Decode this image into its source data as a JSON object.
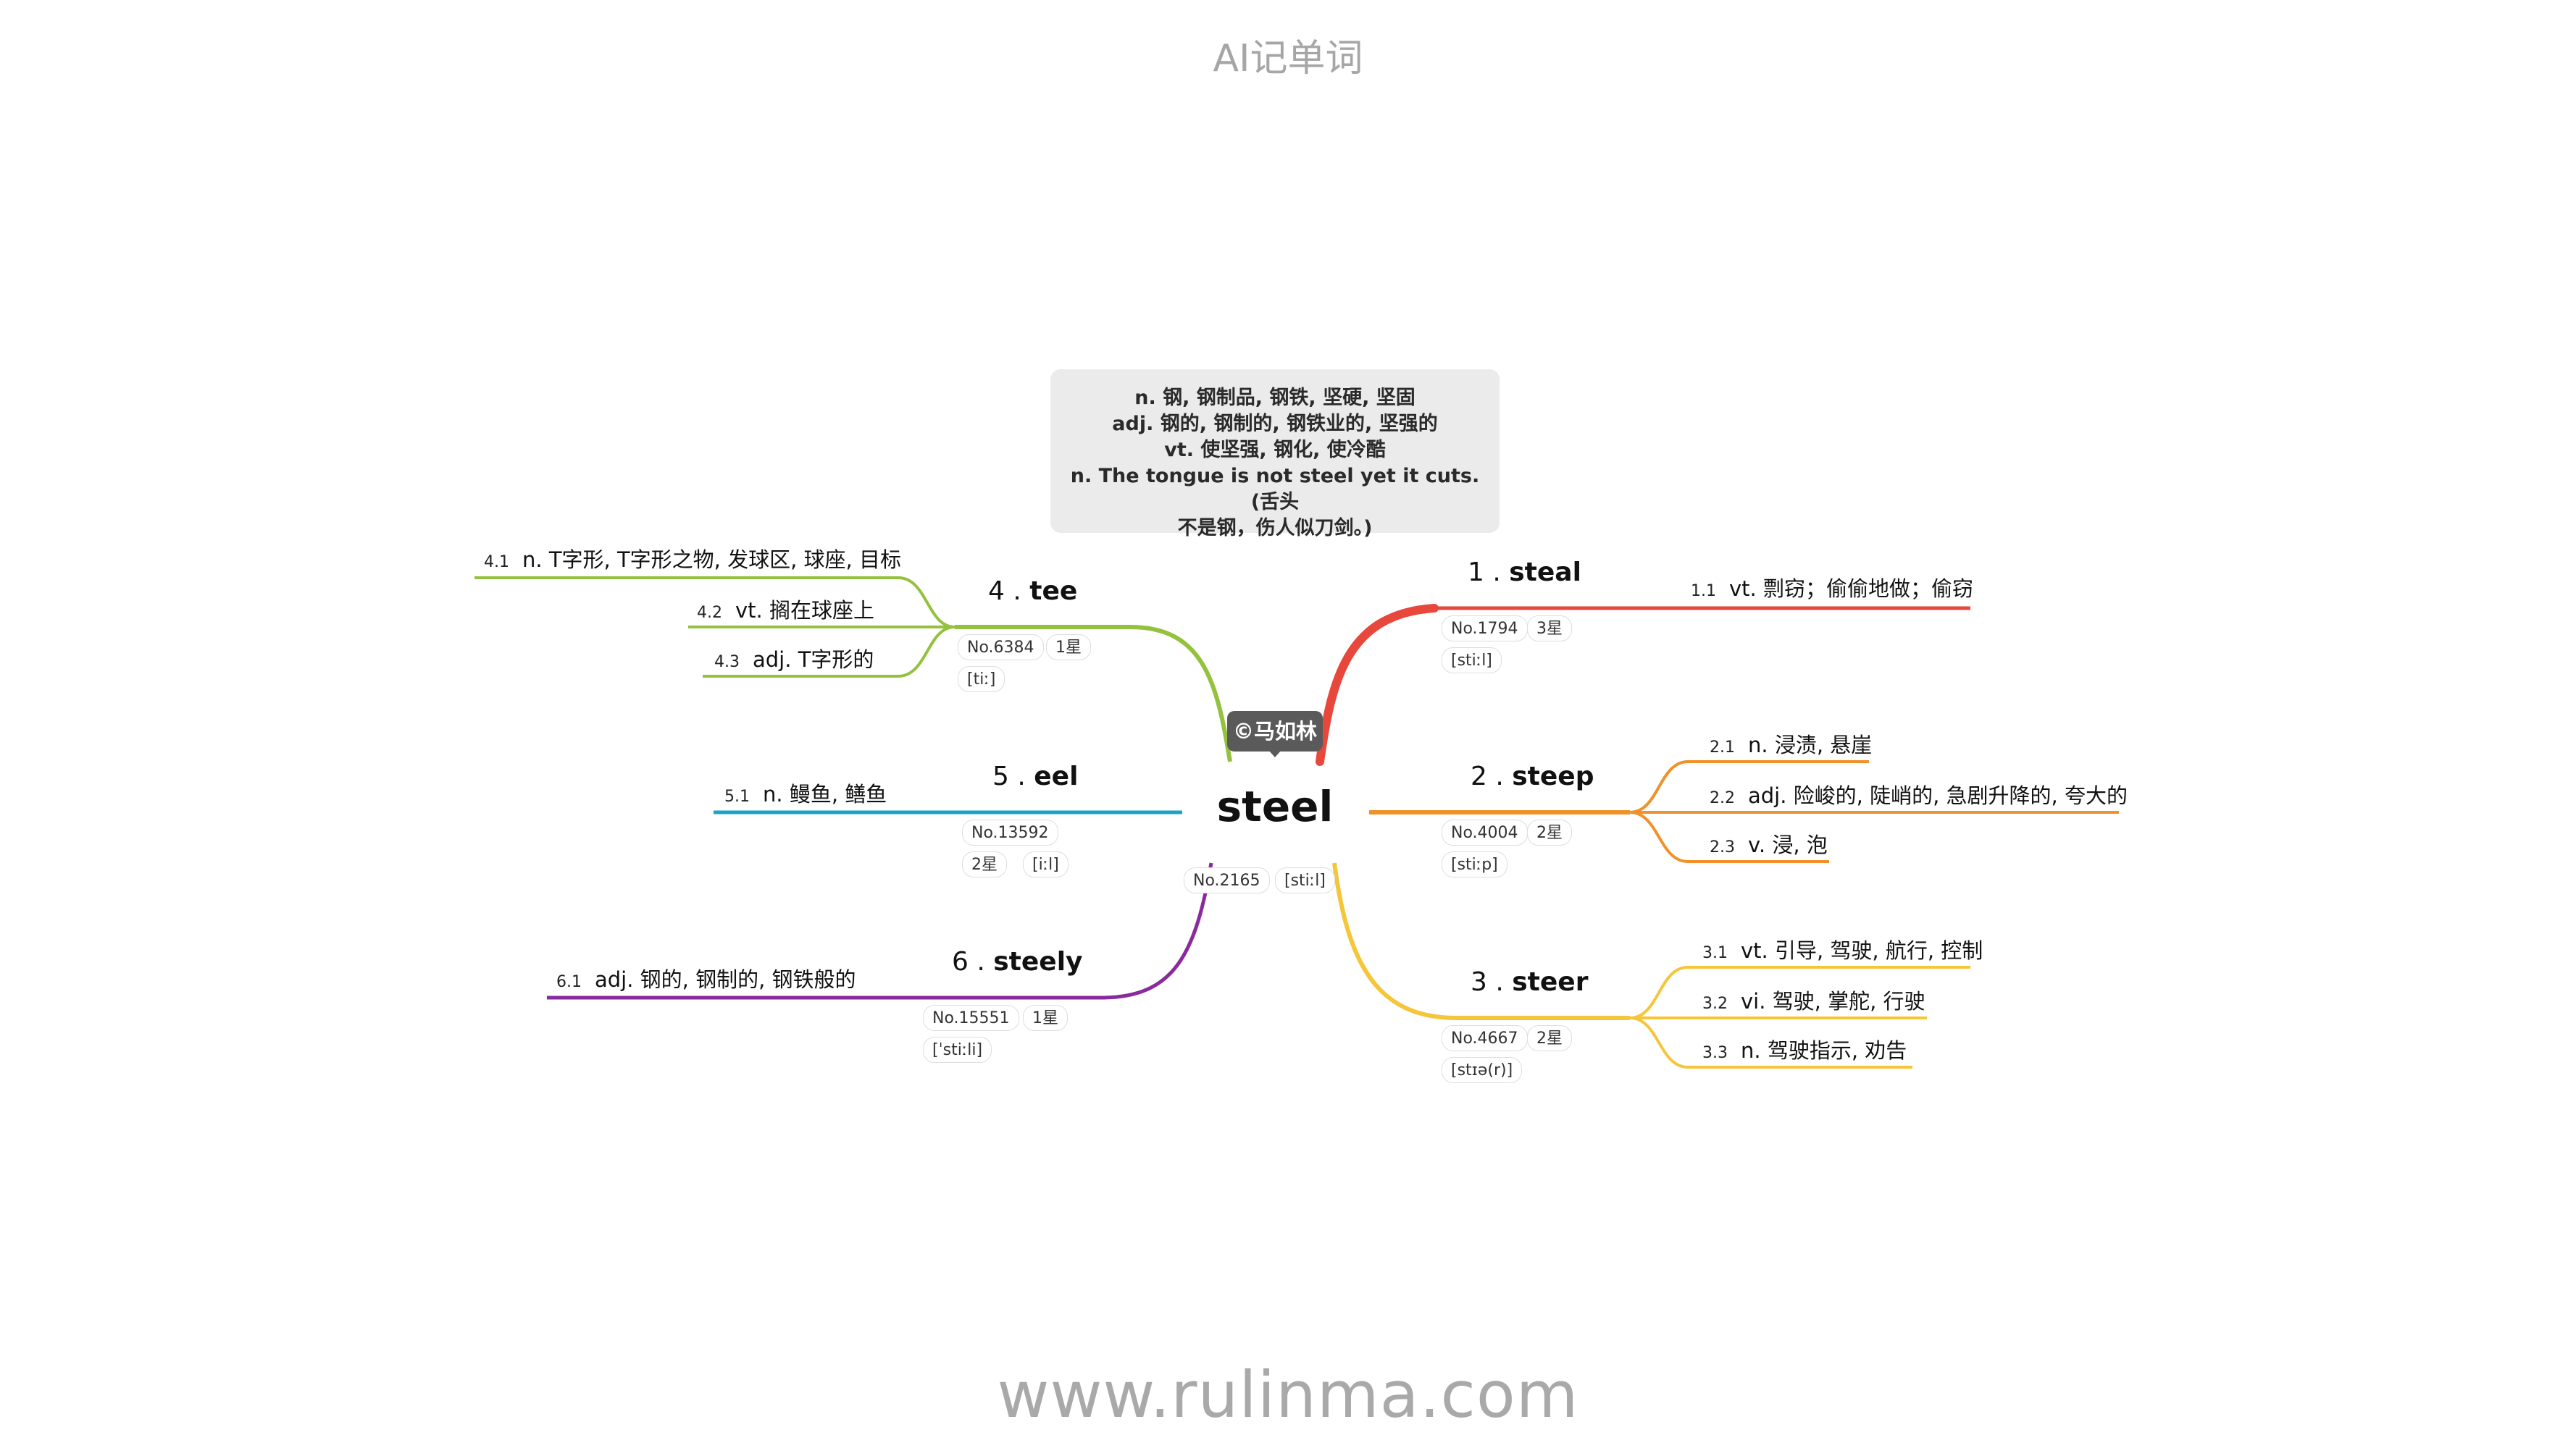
{
  "app_title": "AI记单词",
  "website": "www.rulinma.com",
  "center": {
    "word": "steel",
    "tags": [
      "No.2165",
      "[stiːl]"
    ],
    "callout": "©马如林",
    "definitions": [
      "n. 钢, 钢制品, 钢铁, 坚硬, 坚固",
      "adj. 钢的, 钢制的, 钢铁业的, 坚强的",
      "vt. 使坚强, 钢化, 使冷酷",
      "n. The tongue is not steel yet it cuts. (舌头",
      "不是钢，伤人似刀剑。)"
    ]
  },
  "colors": {
    "steal": "#e8473b",
    "steep": "#f0912a",
    "steer": "#f5c53a",
    "tee": "#94c13e",
    "eel": "#1ba3c7",
    "steely": "#8a2a9c"
  },
  "branches": [
    {
      "num": "1 .",
      "word": "steal",
      "color": "steal",
      "tags": [
        "No.1794",
        "3星",
        "[stiːl]"
      ],
      "senses": [
        {
          "idx": "1.1",
          "text": "vt. 剽窃；偷偷地做；偷窃"
        }
      ]
    },
    {
      "num": "2 .",
      "word": "steep",
      "color": "steep",
      "tags": [
        "No.4004",
        "2星",
        "[stiːp]"
      ],
      "senses": [
        {
          "idx": "2.1",
          "text": "n. 浸渍, 悬崖"
        },
        {
          "idx": "2.2",
          "text": "adj. 险峻的, 陡峭的, 急剧升降的, 夸大的"
        },
        {
          "idx": "2.3",
          "text": "v. 浸, 泡"
        }
      ]
    },
    {
      "num": "3 .",
      "word": "steer",
      "color": "steer",
      "tags": [
        "No.4667",
        "2星",
        "[stɪə(r)]"
      ],
      "senses": [
        {
          "idx": "3.1",
          "text": "vt. 引导, 驾驶, 航行, 控制"
        },
        {
          "idx": "3.2",
          "text": "vi. 驾驶, 掌舵, 行驶"
        },
        {
          "idx": "3.3",
          "text": "n. 驾驶指示, 劝告"
        }
      ]
    },
    {
      "num": "4 .",
      "word": "tee",
      "color": "tee",
      "tags": [
        "No.6384",
        "1星",
        "[tiː]"
      ],
      "senses": [
        {
          "idx": "4.1",
          "text": "n. T字形, T字形之物, 发球区, 球座, 目标"
        },
        {
          "idx": "4.2",
          "text": "vt. 搁在球座上"
        },
        {
          "idx": "4.3",
          "text": "adj. T字形的"
        }
      ]
    },
    {
      "num": "5 .",
      "word": "eel",
      "color": "eel",
      "tags": [
        "No.13592",
        "2星",
        "[iːl]"
      ],
      "senses": [
        {
          "idx": "5.1",
          "text": "n. 鳗鱼, 鳝鱼"
        }
      ]
    },
    {
      "num": "6 .",
      "word": "steely",
      "color": "steely",
      "tags": [
        "No.15551",
        "1星",
        "[ˈstiːli]"
      ],
      "senses": [
        {
          "idx": "6.1",
          "text": "adj. 钢的, 钢制的, 钢铁般的"
        }
      ]
    }
  ]
}
